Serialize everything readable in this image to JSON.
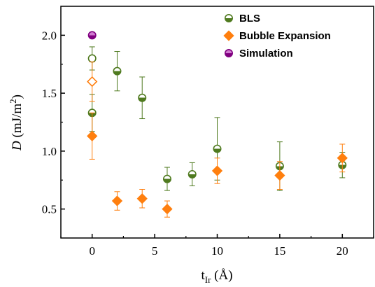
{
  "chart_data": {
    "type": "scatter",
    "title": "",
    "xlabel": "t",
    "xlabel_sub": "Ir",
    "xlabel_unit": " (Å)",
    "ylabel": "D",
    "ylabel_unit": " (mJ/m",
    "ylabel_sup": "2",
    "ylabel_close": ")",
    "xlim": [
      -2.5,
      22.5
    ],
    "ylim": [
      0.25,
      2.25
    ],
    "xticks": [
      0,
      5,
      10,
      15,
      20
    ],
    "xtick_labels": [
      "0",
      "5",
      "10",
      "15",
      "20"
    ],
    "yticks": [
      0.5,
      1.0,
      1.5,
      2.0
    ],
    "ytick_labels": [
      "0.5",
      "1.0",
      "1.5",
      "2.0"
    ],
    "legend_position": "top-right",
    "series": [
      {
        "name": "BLS",
        "marker": "circle",
        "color": "#4f7a1f",
        "points": [
          {
            "x": 0,
            "y": 1.8,
            "err": 0.1,
            "filled": false
          },
          {
            "x": 0,
            "y": 1.33,
            "err": 0.16,
            "filled": true
          },
          {
            "x": 2,
            "y": 1.69,
            "err": 0.17,
            "filled": true
          },
          {
            "x": 4,
            "y": 1.46,
            "err": 0.18,
            "filled": true
          },
          {
            "x": 6,
            "y": 0.76,
            "err": 0.1,
            "filled": true
          },
          {
            "x": 8,
            "y": 0.8,
            "err": 0.1,
            "filled": true
          },
          {
            "x": 10,
            "y": 1.02,
            "err": 0.27,
            "filled": true
          },
          {
            "x": 15,
            "y": 0.87,
            "err": 0.21,
            "filled": true
          },
          {
            "x": 20,
            "y": 0.88,
            "err": 0.11,
            "filled": true
          }
        ]
      },
      {
        "name": "Bubble Expansion",
        "marker": "diamond",
        "color": "#ff7f0e",
        "points": [
          {
            "x": 0,
            "y": 1.6,
            "err": 0.17,
            "filled": false
          },
          {
            "x": 0,
            "y": 1.13,
            "err": 0.2,
            "filled": true
          },
          {
            "x": 2,
            "y": 0.57,
            "err": 0.08,
            "filled": true
          },
          {
            "x": 4,
            "y": 0.59,
            "err": 0.08,
            "filled": true
          },
          {
            "x": 6,
            "y": 0.5,
            "err": 0.07,
            "filled": true
          },
          {
            "x": 10,
            "y": 0.83,
            "err": 0.11,
            "filled": true
          },
          {
            "x": 15,
            "y": 0.79,
            "err": 0.12,
            "filled": true
          },
          {
            "x": 20,
            "y": 0.94,
            "err": 0.12,
            "filled": true
          }
        ]
      },
      {
        "name": "Simulation",
        "marker": "circle",
        "color": "#800080",
        "points": [
          {
            "x": 0,
            "y": 2.0,
            "err": 0,
            "filled": true
          }
        ]
      }
    ]
  }
}
